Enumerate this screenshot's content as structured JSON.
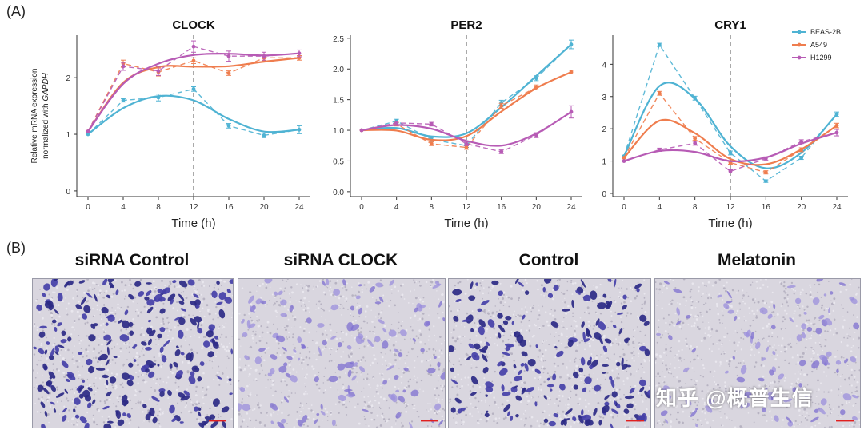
{
  "panel_a_label": "(A)",
  "panel_b_label": "(B)",
  "shared_axis": {
    "xlabel": "Time (h)",
    "ylabel_line1": "Relative mRNA expression",
    "ylabel_line2_prefix": "normalized with ",
    "ylabel_line2_gene": "GAPDH",
    "xticks": [
      0,
      4,
      8,
      12,
      16,
      20,
      24
    ],
    "vline_at": 12
  },
  "legend": [
    {
      "name": "BEAS-2B",
      "color": "#4fb3d3"
    },
    {
      "name": "A549",
      "color": "#ef7d4e"
    },
    {
      "name": "H1299",
      "color": "#b75bb5"
    }
  ],
  "chart_data": [
    {
      "type": "line",
      "title": "CLOCK",
      "xlabel": "Time (h)",
      "ylabel": "Relative mRNA expression normalized with GAPDH",
      "x": [
        0,
        4,
        8,
        12,
        16,
        20,
        24
      ],
      "ylim": [
        -0.1,
        2.75
      ],
      "yticks": [
        0,
        1,
        2
      ],
      "series": [
        {
          "name": "BEAS-2B",
          "values": [
            1.0,
            1.6,
            1.65,
            1.8,
            1.15,
            0.98,
            1.08
          ],
          "errors": [
            0,
            0.03,
            0.06,
            0.04,
            0.04,
            0.04,
            0.07
          ]
        },
        {
          "name": "A549",
          "values": [
            1.05,
            2.25,
            2.1,
            2.3,
            2.08,
            2.35,
            2.35
          ],
          "errors": [
            0,
            0.06,
            0.07,
            0.05,
            0.04,
            0.05,
            0.04
          ]
        },
        {
          "name": "H1299",
          "values": [
            1.05,
            2.2,
            2.12,
            2.55,
            2.38,
            2.38,
            2.43
          ],
          "errors": [
            0,
            0.07,
            0.08,
            0.1,
            0.09,
            0.07,
            0.06
          ]
        }
      ]
    },
    {
      "type": "line",
      "title": "PER2",
      "xlabel": "Time (h)",
      "ylabel": "",
      "x": [
        0,
        4,
        8,
        12,
        16,
        20,
        24
      ],
      "ylim": [
        -0.08,
        2.55
      ],
      "yticks": [
        0.0,
        0.5,
        1.0,
        1.5,
        2.0,
        2.5
      ],
      "series": [
        {
          "name": "BEAS-2B",
          "values": [
            1.0,
            1.15,
            0.85,
            0.75,
            1.45,
            1.85,
            2.4
          ],
          "errors": [
            0,
            0.03,
            0.03,
            0.03,
            0.04,
            0.04,
            0.07
          ]
        },
        {
          "name": "A549",
          "values": [
            1.0,
            1.1,
            0.78,
            0.72,
            1.4,
            1.7,
            1.95
          ],
          "errors": [
            0,
            0.03,
            0.03,
            0.03,
            0.04,
            0.04,
            0.03
          ]
        },
        {
          "name": "H1299",
          "values": [
            1.0,
            1.12,
            1.1,
            0.78,
            0.65,
            0.92,
            1.3
          ],
          "errors": [
            0,
            0.03,
            0.03,
            0.03,
            0.03,
            0.04,
            0.1
          ]
        }
      ]
    },
    {
      "type": "line",
      "title": "CRY1",
      "xlabel": "Time (h)",
      "ylabel": "",
      "x": [
        0,
        4,
        8,
        12,
        16,
        20,
        24
      ],
      "ylim": [
        -0.1,
        4.9
      ],
      "yticks": [
        0,
        1,
        2,
        3,
        4
      ],
      "series": [
        {
          "name": "BEAS-2B",
          "values": [
            1.15,
            4.6,
            2.95,
            1.25,
            0.38,
            1.1,
            2.45
          ],
          "errors": [
            0,
            0.05,
            0.06,
            0.06,
            0.04,
            0.05,
            0.07
          ]
        },
        {
          "name": "A549",
          "values": [
            1.1,
            3.1,
            1.7,
            0.95,
            0.65,
            1.35,
            2.1
          ],
          "errors": [
            0,
            0.06,
            0.06,
            0.05,
            0.05,
            0.06,
            0.07
          ]
        },
        {
          "name": "H1299",
          "values": [
            1.0,
            1.35,
            1.55,
            0.68,
            1.08,
            1.6,
            1.88
          ],
          "errors": [
            0,
            0.05,
            0.06,
            0.05,
            0.05,
            0.06,
            0.1
          ]
        }
      ]
    }
  ],
  "images": [
    {
      "title": "siRNA Control",
      "density": 0.95,
      "tone": "dark"
    },
    {
      "title": "siRNA CLOCK",
      "density": 0.5,
      "tone": "light"
    },
    {
      "title": "Control",
      "density": 0.75,
      "tone": "dark"
    },
    {
      "title": "Melatonin",
      "density": 0.4,
      "tone": "light"
    }
  ],
  "watermark": "知乎 @概普生信"
}
